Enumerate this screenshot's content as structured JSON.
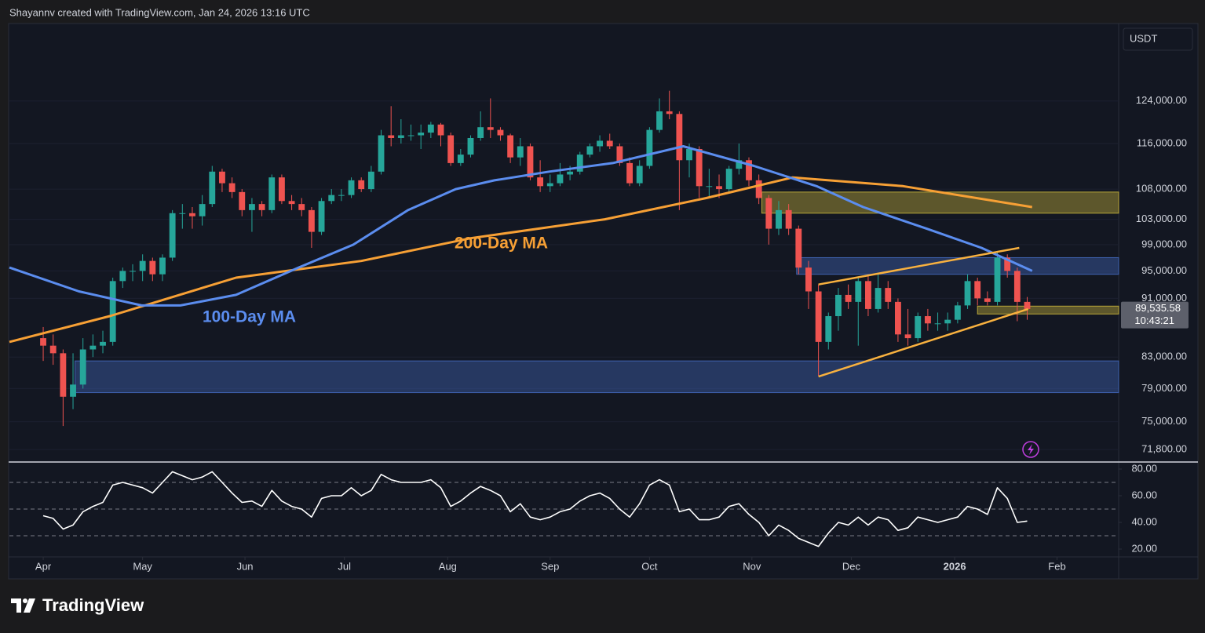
{
  "header": "Shayannv created with TradingView.com, Jan 24, 2026 13:16 UTC",
  "currency": "USDT",
  "brand": "TradingView",
  "chart_data": [
    {
      "type": "candlestick",
      "log_scale": true,
      "up_color": "#26a69a",
      "down_color": "#ef5350",
      "xlim": [
        -3.4,
        108.2
      ],
      "ylim": [
        70500,
        140000
      ],
      "xticks": [
        {
          "value": 0,
          "label": "Apr"
        },
        {
          "value": 10,
          "label": "May"
        },
        {
          "value": 20.3,
          "label": "Jun"
        },
        {
          "value": 30.3,
          "label": "Jul"
        },
        {
          "value": 40.7,
          "label": "Aug"
        },
        {
          "value": 51,
          "label": "Sep"
        },
        {
          "value": 61,
          "label": "Oct"
        },
        {
          "value": 71.3,
          "label": "Nov"
        },
        {
          "value": 81.3,
          "label": "Dec"
        },
        {
          "value": 91.7,
          "label": "2026"
        },
        {
          "value": 102,
          "label": "Feb"
        }
      ],
      "yticks": [
        {
          "value": 124000,
          "label": "124,000.00"
        },
        {
          "value": 116000,
          "label": "116,000.00"
        },
        {
          "value": 108000,
          "label": "108,000.00"
        },
        {
          "value": 103000,
          "label": "103,000.00"
        },
        {
          "value": 99000,
          "label": "99,000.00"
        },
        {
          "value": 95000,
          "label": "95,000.00"
        },
        {
          "value": 91000,
          "label": "91,000.00"
        },
        {
          "value": 83000,
          "label": "83,000.00"
        },
        {
          "value": 79000,
          "label": "79,000.00"
        },
        {
          "value": 75000,
          "label": "75,000.00"
        },
        {
          "value": 71800,
          "label": "71,800.00"
        }
      ],
      "candles": [
        [
          85500,
          87000,
          82500,
          84500
        ],
        [
          84500,
          86000,
          82000,
          83500
        ],
        [
          83500,
          84000,
          74500,
          78000
        ],
        [
          78000,
          83500,
          76500,
          79500
        ],
        [
          79500,
          85500,
          79000,
          84000
        ],
        [
          84000,
          86000,
          83000,
          84500
        ],
        [
          84500,
          86500,
          83500,
          85000
        ],
        [
          85000,
          94000,
          84500,
          93500
        ],
        [
          93500,
          95500,
          92500,
          95000
        ],
        [
          95000,
          96000,
          93500,
          95000
        ],
        [
          95000,
          97500,
          93500,
          96500
        ],
        [
          96500,
          97000,
          93500,
          94500
        ],
        [
          94500,
          97500,
          93500,
          97000
        ],
        [
          97000,
          104500,
          96500,
          104000
        ],
        [
          104000,
          105500,
          101500,
          104000
        ],
        [
          104000,
          105000,
          101500,
          103500
        ],
        [
          103500,
          107000,
          102000,
          105500
        ],
        [
          105500,
          112000,
          105000,
          111000
        ],
        [
          111000,
          111500,
          107500,
          109000
        ],
        [
          109000,
          110000,
          106500,
          107500
        ],
        [
          107500,
          108000,
          103500,
          104500
        ],
        [
          104500,
          106500,
          101000,
          105500
        ],
        [
          105500,
          106000,
          103500,
          104500
        ],
        [
          104500,
          110500,
          104000,
          110000
        ],
        [
          110000,
          110500,
          105500,
          106000
        ],
        [
          106000,
          107000,
          104500,
          105500
        ],
        [
          105500,
          106500,
          103500,
          104500
        ],
        [
          104500,
          105000,
          98500,
          101000
        ],
        [
          101000,
          106500,
          100500,
          106000
        ],
        [
          106000,
          108000,
          105500,
          107000
        ],
        [
          107000,
          108000,
          106000,
          107000
        ],
        [
          107000,
          110000,
          106500,
          109500
        ],
        [
          109500,
          110000,
          107500,
          108000
        ],
        [
          108000,
          112000,
          107500,
          111000
        ],
        [
          111000,
          118500,
          110500,
          117500
        ],
        [
          117500,
          123000,
          115500,
          117000
        ],
        [
          117000,
          120500,
          116000,
          117500
        ],
        [
          117500,
          119500,
          116500,
          117500
        ],
        [
          117500,
          119500,
          115000,
          118000
        ],
        [
          118000,
          120000,
          117000,
          119500
        ],
        [
          119500,
          119800,
          115500,
          117500
        ],
        [
          117500,
          118000,
          112000,
          112500
        ],
        [
          112500,
          115000,
          112000,
          114000
        ],
        [
          114000,
          117500,
          113500,
          117000
        ],
        [
          117000,
          122000,
          116500,
          119000
        ],
        [
          119000,
          124500,
          117000,
          118500
        ],
        [
          118500,
          119000,
          116500,
          117500
        ],
        [
          117500,
          117800,
          112500,
          113500
        ],
        [
          113500,
          117000,
          112000,
          115500
        ],
        [
          115500,
          116000,
          109500,
          110000
        ],
        [
          110000,
          113000,
          107500,
          108500
        ],
        [
          108500,
          110500,
          107500,
          109000
        ],
        [
          109000,
          112500,
          108500,
          110500
        ],
        [
          110500,
          112000,
          109500,
          111000
        ],
        [
          111000,
          114500,
          110500,
          114000
        ],
        [
          114000,
          116000,
          113500,
          115500
        ],
        [
          115500,
          117500,
          114500,
          116500
        ],
        [
          116500,
          117800,
          115000,
          115500
        ],
        [
          115500,
          116000,
          112000,
          112500
        ],
        [
          112500,
          113500,
          108500,
          109000
        ],
        [
          109000,
          113000,
          108500,
          112000
        ],
        [
          112000,
          119000,
          111500,
          118500
        ],
        [
          118500,
          124500,
          118000,
          122000
        ],
        [
          122000,
          126000,
          120500,
          121500
        ],
        [
          121500,
          122000,
          104500,
          113000
        ],
        [
          113000,
          116000,
          110000,
          115000
        ],
        [
          115000,
          115500,
          106500,
          108500
        ],
        [
          108500,
          111500,
          106500,
          108500
        ],
        [
          108500,
          110500,
          106500,
          108000
        ],
        [
          108000,
          112000,
          107500,
          111500
        ],
        [
          111500,
          116000,
          110500,
          113000
        ],
        [
          113000,
          113500,
          108500,
          109500
        ],
        [
          109500,
          110500,
          105500,
          106500
        ],
        [
          106500,
          107000,
          99000,
          101500
        ],
        [
          101500,
          106000,
          100500,
          104500
        ],
        [
          104500,
          105500,
          100500,
          101500
        ],
        [
          101500,
          102000,
          94500,
          95500
        ],
        [
          95500,
          96500,
          89500,
          92000
        ],
        [
          92000,
          93000,
          80600,
          85000
        ],
        [
          85000,
          89000,
          84000,
          88500
        ],
        [
          88500,
          92500,
          86500,
          91500
        ],
        [
          91500,
          93000,
          89500,
          90500
        ],
        [
          90500,
          94000,
          84500,
          93500
        ],
        [
          93500,
          94500,
          88500,
          89500
        ],
        [
          89500,
          94500,
          89000,
          92500
        ],
        [
          92500,
          93500,
          89500,
          90500
        ],
        [
          90500,
          91000,
          85000,
          86000
        ],
        [
          86000,
          89500,
          84500,
          85500
        ],
        [
          85500,
          89000,
          85000,
          88500
        ],
        [
          88500,
          89500,
          86500,
          87500
        ],
        [
          87500,
          89000,
          86500,
          87500
        ],
        [
          87500,
          89000,
          86500,
          88000
        ],
        [
          88000,
          90500,
          87500,
          90000
        ],
        [
          90000,
          94500,
          89500,
          93500
        ],
        [
          93500,
          94000,
          90000,
          91000
        ],
        [
          91000,
          92000,
          90000,
          90500
        ],
        [
          90500,
          97800,
          90000,
          97000
        ],
        [
          97000,
          97500,
          94000,
          95000
        ],
        [
          95000,
          95500,
          87800,
          90500
        ],
        [
          90500,
          91200,
          88000,
          89500
        ]
      ],
      "series": [
        {
          "name": "200-Day MA",
          "color": "#f7a035",
          "x": [
            -3.4,
            6.7,
            19.4,
            32,
            43,
            56.5,
            66.7,
            75.4,
            86.5,
            99.5
          ],
          "values": [
            85000,
            88500,
            94000,
            96500,
            100000,
            103000,
            106500,
            110000,
            108500,
            105000
          ]
        },
        {
          "name": "100-Day MA",
          "color": "#5b8def",
          "x": [
            -3.4,
            3.6,
            9.9,
            13.8,
            19.4,
            25.7,
            31.2,
            36.7,
            41.5,
            45.4,
            50.9,
            57.3,
            64.4,
            71.5,
            77.8,
            82.5,
            88.9,
            94.4,
            99.5
          ],
          "values": [
            95500,
            92000,
            90000,
            90000,
            91500,
            95500,
            99000,
            104500,
            108000,
            109500,
            111000,
            112500,
            115500,
            112000,
            108500,
            105000,
            101500,
            98500,
            95000
          ]
        }
      ],
      "zones": [
        {
          "x": [
            72.3,
            108.2
          ],
          "y": [
            104000,
            107500
          ],
          "color": "#b8a63a"
        },
        {
          "x": [
            75.8,
            108.2
          ],
          "y": [
            94500,
            97000
          ],
          "color": "#3f62b0"
        },
        {
          "x": [
            3.2,
            108.2
          ],
          "y": [
            78500,
            82500
          ],
          "color": "#3f62b0"
        },
        {
          "x": [
            94,
            108.2
          ],
          "y": [
            88800,
            89900
          ],
          "color": "#b8a63a"
        }
      ],
      "trendlines": [
        {
          "x": [
            78,
            98.2
          ],
          "y": [
            93000,
            98500
          ],
          "color": "#f8b13f"
        },
        {
          "x": [
            78,
            99.1
          ],
          "y": [
            80500,
            89500
          ],
          "color": "#f8b13f"
        }
      ],
      "last_price": {
        "value": 89535.58,
        "label": "89,535.58"
      },
      "countdown": "10:43:21"
    },
    {
      "type": "line",
      "color": "#ffffff",
      "ylim": [
        15.3,
        84.7
      ],
      "yticks": [
        {
          "value": 80,
          "label": "80.00"
        },
        {
          "value": 60,
          "label": "60.00"
        },
        {
          "value": 40,
          "label": "40.00"
        },
        {
          "value": 20,
          "label": "20.00"
        }
      ],
      "bands": [
        70,
        50,
        30
      ],
      "values": [
        45,
        43,
        35,
        38,
        48,
        52,
        55,
        68,
        70,
        68,
        66,
        62,
        70,
        78,
        75,
        72,
        74,
        78,
        70,
        62,
        55,
        56,
        52,
        64,
        56,
        52,
        50,
        44,
        58,
        60,
        60,
        66,
        60,
        64,
        76,
        72,
        70,
        70,
        70,
        72,
        66,
        52,
        56,
        62,
        67,
        64,
        60,
        48,
        54,
        44,
        42,
        44,
        48,
        50,
        56,
        60,
        62,
        58,
        50,
        44,
        54,
        68,
        72,
        68,
        48,
        50,
        42,
        42,
        44,
        52,
        54,
        46,
        40,
        30,
        38,
        34,
        28,
        25,
        22,
        32,
        40,
        38,
        44,
        38,
        44,
        42,
        34,
        36,
        44,
        42,
        40,
        42,
        44,
        52,
        50,
        46,
        66,
        58,
        40,
        41
      ]
    }
  ]
}
